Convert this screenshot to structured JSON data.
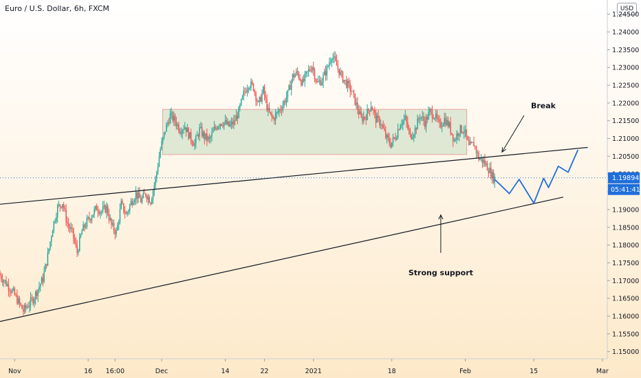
{
  "header": {
    "title": "Euro / U.S. Dollar, 6h, FXCM",
    "currency": "USD"
  },
  "colors": {
    "up": "#26a69a",
    "down": "#ef5350",
    "projection": "#1e6fdc",
    "box_fill": "#d8e5cf",
    "box_stroke": "#e8a79c",
    "tag": "#1e6fdc",
    "line": "#131722"
  },
  "chart_data": {
    "type": "candlestick",
    "title": "Euro / U.S. Dollar, 6h, FXCM",
    "y_ticks": [
      "1.24500",
      "1.24000",
      "1.23500",
      "1.23000",
      "1.22500",
      "1.22000",
      "1.21500",
      "1.21000",
      "1.20500",
      "1.20000",
      "1.19500",
      "1.19000",
      "1.18500",
      "1.18000",
      "1.17500",
      "1.17000",
      "1.16500",
      "1.16000",
      "1.15500",
      "1.15000"
    ],
    "y_tick_values": [
      1.245,
      1.24,
      1.235,
      1.23,
      1.225,
      1.22,
      1.215,
      1.21,
      1.205,
      1.2,
      1.195,
      1.19,
      1.185,
      1.18,
      1.175,
      1.17,
      1.165,
      1.16,
      1.155,
      1.15
    ],
    "ylim": [
      1.148,
      1.249
    ],
    "x_ticks": [
      {
        "label": "Nov",
        "day": 0
      },
      {
        "label": "16",
        "day": 15
      },
      {
        "label": "16:00",
        "day": 20.5
      },
      {
        "label": "Dec",
        "day": 30
      },
      {
        "label": "14",
        "day": 43
      },
      {
        "label": "22",
        "day": 51
      },
      {
        "label": "2021",
        "day": 61
      },
      {
        "label": "18",
        "day": 77
      },
      {
        "label": "Feb",
        "day": 92
      },
      {
        "label": "15",
        "day": 106
      },
      {
        "label": "Mar",
        "day": 120
      }
    ],
    "x_axis_origin": "Nov 1, 2020",
    "xlim": [
      -3,
      121
    ],
    "current_price": {
      "value": 1.19894,
      "label": "1.19894",
      "countdown": "05:41:41"
    },
    "price_path": [
      [
        -3,
        1.172
      ],
      [
        0,
        1.1665
      ],
      [
        2,
        1.1615
      ],
      [
        4,
        1.1648
      ],
      [
        6,
        1.1705
      ],
      [
        7,
        1.177
      ],
      [
        8,
        1.185
      ],
      [
        9,
        1.1905
      ],
      [
        10,
        1.192
      ],
      [
        11,
        1.186
      ],
      [
        12,
        1.1835
      ],
      [
        13,
        1.178
      ],
      [
        14,
        1.184
      ],
      [
        15,
        1.1865
      ],
      [
        16,
        1.1885
      ],
      [
        17,
        1.1905
      ],
      [
        18,
        1.1895
      ],
      [
        19,
        1.1905
      ],
      [
        20,
        1.1855
      ],
      [
        21,
        1.1835
      ],
      [
        22,
        1.1915
      ],
      [
        23,
        1.1885
      ],
      [
        24,
        1.192
      ],
      [
        25,
        1.1945
      ],
      [
        26,
        1.1925
      ],
      [
        27,
        1.1945
      ],
      [
        28,
        1.1925
      ],
      [
        29,
        1.1985
      ],
      [
        30,
        1.207
      ],
      [
        31,
        1.2125
      ],
      [
        32,
        1.2165
      ],
      [
        33,
        1.215
      ],
      [
        34,
        1.2125
      ],
      [
        35,
        1.2135
      ],
      [
        36,
        1.2105
      ],
      [
        37,
        1.2085
      ],
      [
        38,
        1.2125
      ],
      [
        39,
        1.2105
      ],
      [
        40,
        1.2095
      ],
      [
        41,
        1.2125
      ],
      [
        42,
        1.2145
      ],
      [
        43,
        1.2145
      ],
      [
        44,
        1.2135
      ],
      [
        45,
        1.2145
      ],
      [
        46,
        1.2175
      ],
      [
        47,
        1.2225
      ],
      [
        48,
        1.2255
      ],
      [
        49,
        1.2245
      ],
      [
        50,
        1.2195
      ],
      [
        51,
        1.2235
      ],
      [
        52,
        1.2175
      ],
      [
        53,
        1.2155
      ],
      [
        54,
        1.2175
      ],
      [
        55,
        1.2195
      ],
      [
        56,
        1.2225
      ],
      [
        57,
        1.2275
      ],
      [
        58,
        1.2285
      ],
      [
        59,
        1.2255
      ],
      [
        60,
        1.2285
      ],
      [
        61,
        1.2305
      ],
      [
        62,
        1.2255
      ],
      [
        63,
        1.2265
      ],
      [
        64,
        1.2295
      ],
      [
        65,
        1.2335
      ],
      [
        66,
        1.2305
      ],
      [
        67,
        1.2275
      ],
      [
        68,
        1.2255
      ],
      [
        69,
        1.2235
      ],
      [
        70,
        1.2195
      ],
      [
        71,
        1.2155
      ],
      [
        72,
        1.2165
      ],
      [
        73,
        1.2195
      ],
      [
        74,
        1.2155
      ],
      [
        75,
        1.2145
      ],
      [
        76,
        1.2105
      ],
      [
        77,
        1.2085
      ],
      [
        78,
        1.2105
      ],
      [
        79,
        1.2145
      ],
      [
        80,
        1.2155
      ],
      [
        81,
        1.2105
      ],
      [
        82,
        1.2125
      ],
      [
        83,
        1.2165
      ],
      [
        84,
        1.2145
      ],
      [
        85,
        1.2175
      ],
      [
        86,
        1.2165
      ],
      [
        87,
        1.2135
      ],
      [
        88,
        1.2155
      ],
      [
        89,
        1.2135
      ],
      [
        90,
        1.2095
      ],
      [
        91,
        1.2125
      ],
      [
        92,
        1.2125
      ],
      [
        93,
        1.2075
      ],
      [
        94,
        1.2085
      ],
      [
        95,
        1.2045
      ],
      [
        96,
        1.2035
      ],
      [
        97,
        1.2015
      ],
      [
        98,
        1.1989
      ]
    ],
    "annotations": [
      {
        "type": "rectangle",
        "label": "",
        "x": [
          30.2,
          92.3
        ],
        "y": [
          1.2055,
          1.2182
        ]
      },
      {
        "type": "trendline",
        "label": "",
        "points": [
          [
            -3,
            1.1915
          ],
          [
            117,
            1.2075
          ]
        ]
      },
      {
        "type": "trendline",
        "label": "",
        "points": [
          [
            -3,
            1.1585
          ],
          [
            112,
            1.1935
          ]
        ]
      },
      {
        "type": "projection",
        "label": "",
        "points": [
          [
            98,
            1.1985
          ],
          [
            101,
            1.1945
          ],
          [
            103,
            1.1985
          ],
          [
            106,
            1.1918
          ],
          [
            108,
            1.1988
          ],
          [
            109,
            1.1962
          ],
          [
            111,
            1.2022
          ],
          [
            113,
            1.2005
          ],
          [
            115,
            1.2068
          ]
        ]
      },
      {
        "type": "text",
        "label": "Break",
        "at": [
          104,
          1.2185
        ]
      },
      {
        "type": "arrow",
        "label": "",
        "from": [
          104,
          1.2165
        ],
        "to": [
          99.5,
          1.2062
        ]
      },
      {
        "type": "text",
        "label": "Strong support",
        "at": [
          87,
          1.1715
        ]
      },
      {
        "type": "arrow",
        "label": "",
        "from": [
          87,
          1.1778
        ],
        "to": [
          87,
          1.1885
        ]
      }
    ]
  }
}
